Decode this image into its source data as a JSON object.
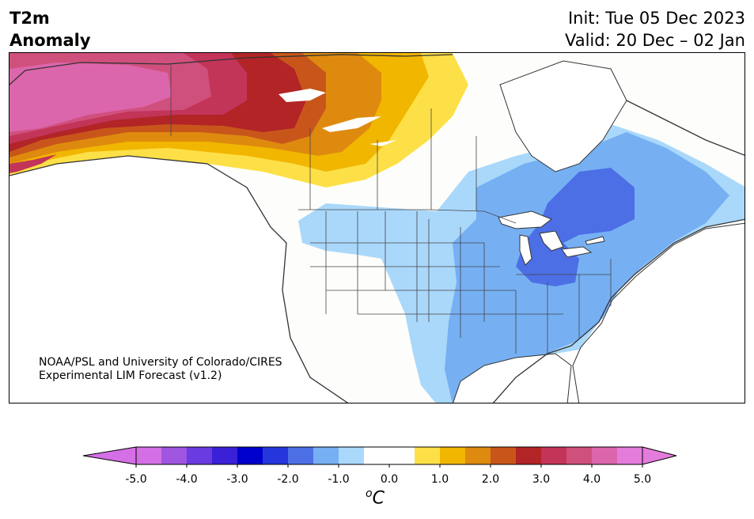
{
  "header": {
    "title_line1": "T2m",
    "title_line2": "Anomaly",
    "init": "Init: Tue 05 Dec 2023",
    "valid": "Valid: 20 Dec – 02 Jan"
  },
  "credit": {
    "line1": "NOAA/PSL and University of Colorado/CIRES",
    "line2": "Experimental LIM Forecast (v1.2)"
  },
  "colorbar": {
    "unit_base": "o",
    "unit_main": "C",
    "tick_labels": [
      "-5.0",
      "-4.0",
      "-3.0",
      "-2.0",
      "-1.0",
      "0.0",
      "1.0",
      "2.0",
      "3.0",
      "4.0",
      "5.0"
    ],
    "colors": [
      "#d46fe6",
      "#9f55e0",
      "#6a3be0",
      "#3a20d6",
      "#0000cc",
      "#2436dc",
      "#4c6fe6",
      "#76b0f3",
      "#aad8fb",
      "#ffffff",
      "#ffffff",
      "#fde047",
      "#f1b600",
      "#de8a0f",
      "#c8561b",
      "#b22426",
      "#c23458",
      "#d0507d",
      "#dc66ac",
      "#e47cdc"
    ],
    "extend_low_color": "#d46fe6",
    "extend_high_color": "#e47cdc"
  },
  "map": {
    "region": "North America",
    "variable": "2m temperature anomaly",
    "colors": {
      "ocean": "#ffffff",
      "land": "#fdfefb",
      "coast": "#333333"
    }
  }
}
